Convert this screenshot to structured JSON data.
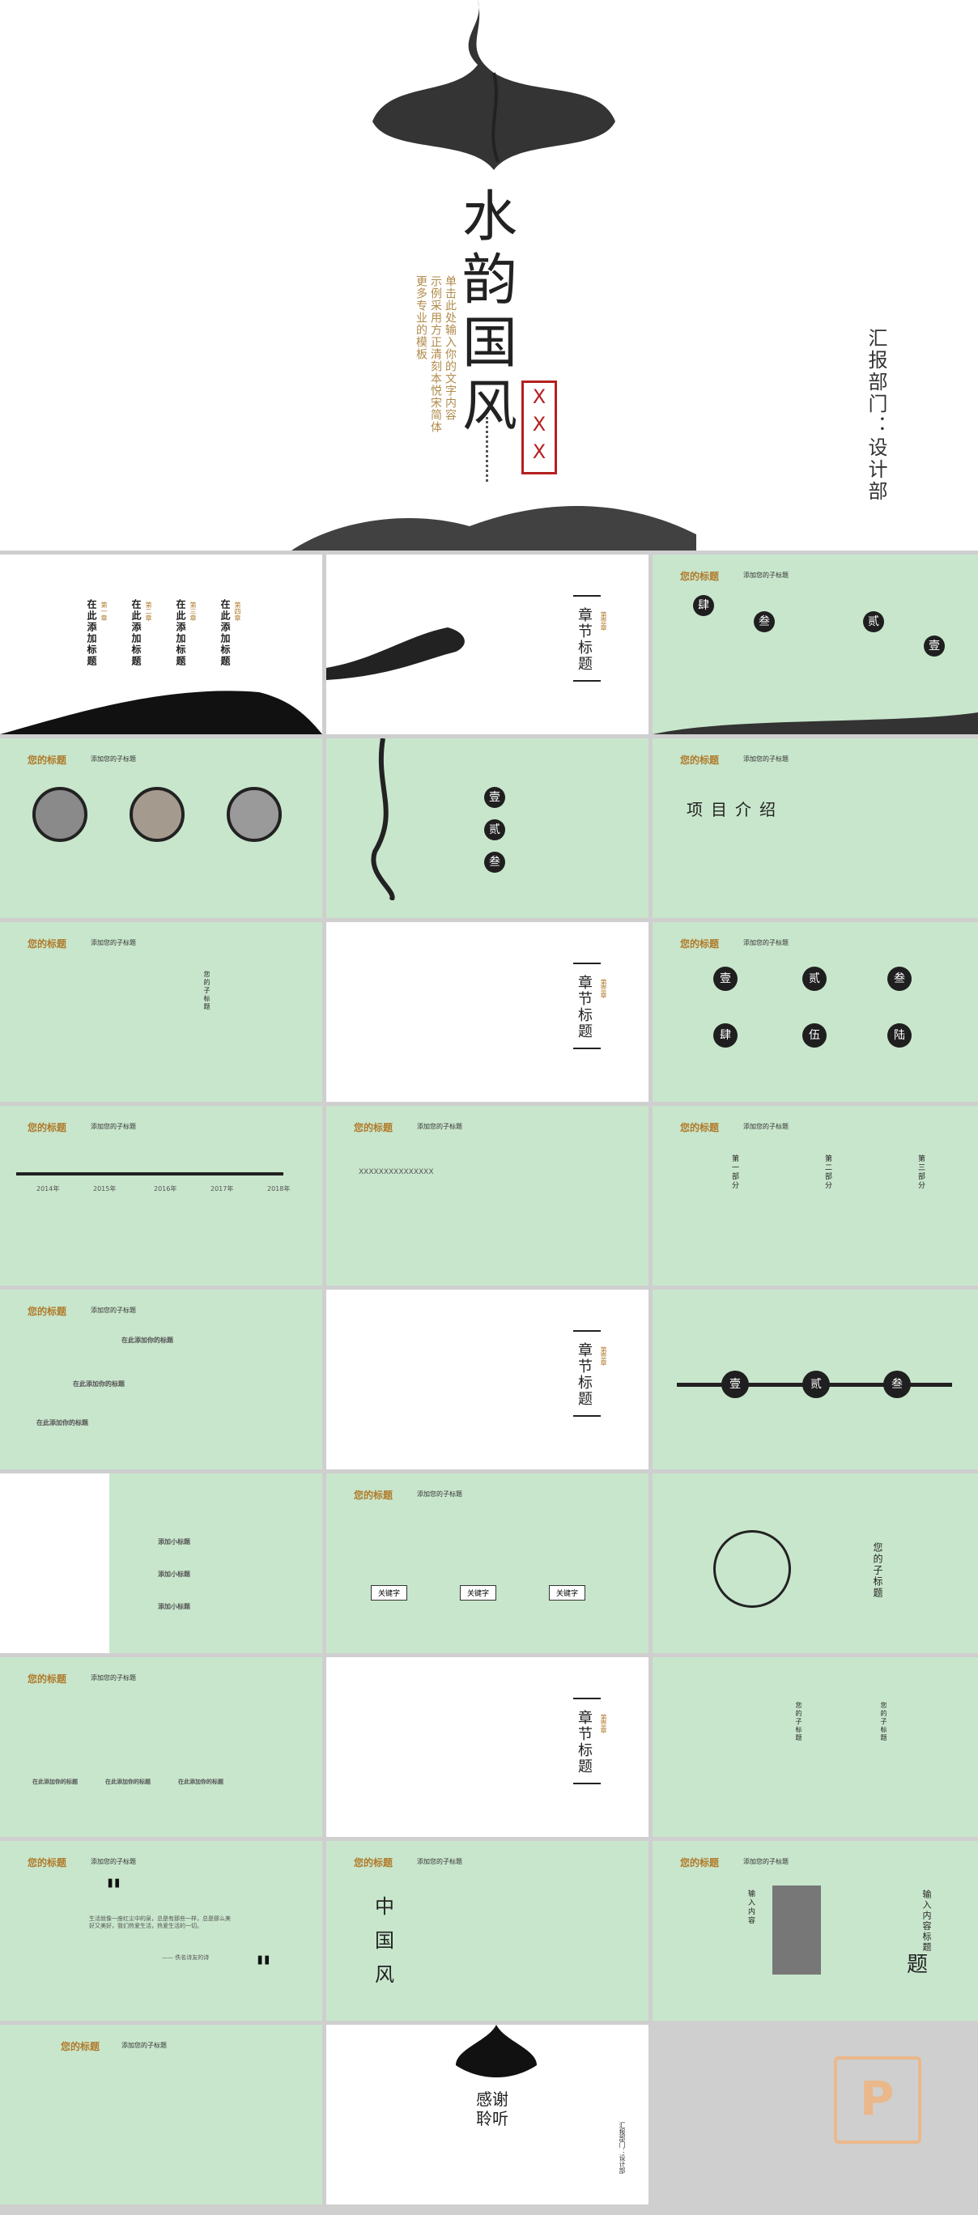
{
  "cover": {
    "title": [
      "水",
      "韵",
      "国",
      "风"
    ],
    "subtitle_lines": [
      "单击此处输入你的文字内容",
      "示例采用方正清刻本悦宋简体",
      "更多专业的模板"
    ],
    "seal": [
      "X",
      "X",
      "X"
    ],
    "department": "汇报部门：设计部"
  },
  "common": {
    "slide_title": "您的标题",
    "slide_subtitle": "添加您的子标题",
    "chapter_no": "第壹章",
    "chapter_title": "章节标题",
    "add_title": "在此添加标题",
    "keyword": "关键字"
  },
  "toc": {
    "chapters": [
      "第一章",
      "第二章",
      "第三章",
      "第四章"
    ]
  },
  "ordinals": [
    "壹",
    "贰",
    "叁",
    "肆",
    "伍",
    "陆"
  ],
  "project_intro": "项目介绍",
  "timeline_years": [
    "2014年",
    "2015年",
    "2016年",
    "2017年",
    "2018年"
  ],
  "placeholder_x": "XXXXXXXXXXXXXXX",
  "part_labels": [
    "第一部分",
    "第二部分",
    "第三部分"
  ],
  "steps": [
    "在此添加你的标题",
    "在此添加你的标题",
    "在此添加你的标题"
  ],
  "small_title": "添加小标题",
  "your_subtitle": "您的子标题",
  "your_title": "您的标题",
  "china_style": [
    "中",
    "国",
    "风"
  ],
  "input_content": "输入内容",
  "input_title": "输入内容标题",
  "title_char": "题",
  "quote": {
    "text": "生活就像一座红尘中的泉，总是有那些一样，总是那么美好又美好，我们热爱生活，热爱生活的一切。",
    "author": "—— 佚名诗友的诗"
  },
  "thanks": [
    "感",
    "谢",
    "聆",
    "听"
  ],
  "thanks_dept": "汇报部门：设计部",
  "logo_letter": "P",
  "colors": {
    "green_bg": "#c8e6cc",
    "gold": "#b07a2a",
    "seal_red": "#b51f1f",
    "ink": "#1f1f1f"
  }
}
